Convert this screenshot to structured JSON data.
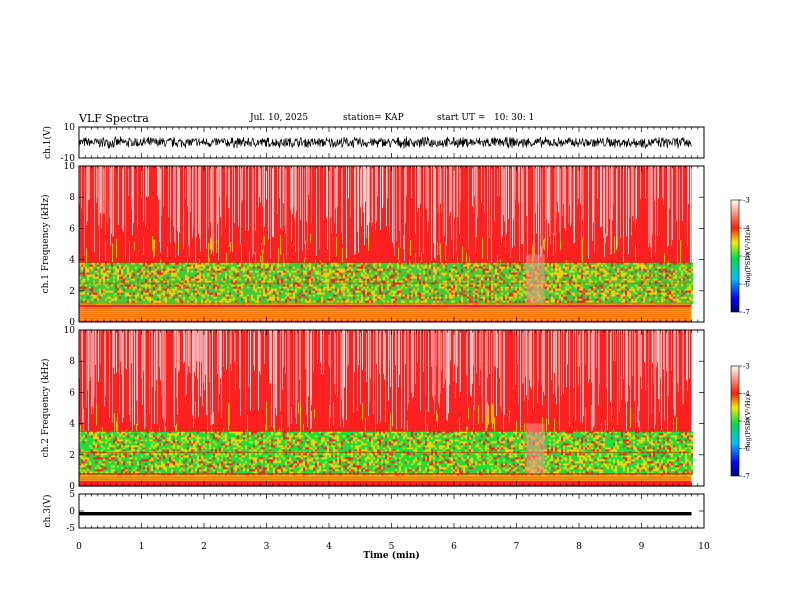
{
  "header": {
    "title": "VLF Spectra",
    "date": "Jul. 10, 2025",
    "station": "station= KAP",
    "start_ut": "start UT =   10: 30: 1"
  },
  "chart_data": [
    {
      "type": "line",
      "name": "ch1-waveform",
      "ylabel": "ch.1(V)",
      "ylim": [
        -10,
        10
      ],
      "yticks": [
        10,
        -10
      ],
      "xlim": [
        0,
        10
      ],
      "data_extent_min": [
        0,
        9.8
      ],
      "typical_range": [
        -4,
        4
      ]
    },
    {
      "type": "heatmap",
      "name": "ch1-spectrogram",
      "ylabel": "ch.1 Frequency (kHz)",
      "ylim": [
        0,
        10
      ],
      "yticks": [
        0,
        2,
        4,
        6,
        8,
        10
      ],
      "xlim": [
        0,
        10
      ],
      "data_extent_min": [
        0,
        9.8
      ],
      "band_low_kHz": [
        1.2,
        3.8
      ],
      "disturbance_min": [
        7.15,
        7.45
      ],
      "colorbar": {
        "label": "log(PSD)(V²/Hz)",
        "range": [
          -7,
          -3
        ],
        "ticks": [
          -3,
          -4,
          -5,
          -6,
          -7
        ]
      }
    },
    {
      "type": "heatmap",
      "name": "ch2-spectrogram",
      "ylabel": "ch.2 Frequency (kHz)",
      "ylim": [
        0,
        10
      ],
      "yticks": [
        0,
        2,
        4,
        6,
        8,
        10
      ],
      "xlim": [
        0,
        10
      ],
      "data_extent_min": [
        0,
        9.8
      ],
      "band_low_kHz": [
        0.8,
        3.5
      ],
      "disturbance_min": [
        7.15,
        7.45
      ],
      "colorbar": {
        "label": "log(PSD)(V²/Hz)",
        "range": [
          -7,
          -3
        ],
        "ticks": [
          -3,
          -4,
          -5,
          -6,
          -7
        ]
      }
    },
    {
      "type": "line",
      "name": "ch3-waveform",
      "ylabel": "ch.3(V)",
      "ylim": [
        -5,
        5
      ],
      "yticks": [
        5,
        0,
        -5
      ],
      "xlim": [
        0,
        10
      ],
      "data_extent_min": [
        0,
        9.8
      ],
      "level_band": [
        -1.3,
        -0.3
      ]
    }
  ],
  "xaxis": {
    "label": "Time (min)",
    "ticks": [
      "0",
      "1",
      "2",
      "3",
      "4",
      "5",
      "6",
      "7",
      "8",
      "9",
      "10"
    ]
  },
  "colors": {
    "waveform": "#000000",
    "psd_red": "#ff2020",
    "psd_yellow": "#f0e000",
    "psd_green": "#20e040",
    "psd_blue": "#0040ff"
  }
}
